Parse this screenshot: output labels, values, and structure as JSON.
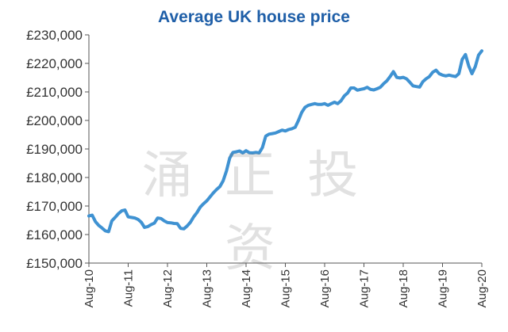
{
  "chart_data": {
    "type": "line",
    "title": "Average UK house price",
    "xlabel": "",
    "ylabel": "",
    "ylim": [
      150000,
      230000
    ],
    "ytick_labels": [
      "£150,000",
      "£160,000",
      "£170,000",
      "£180,000",
      "£190,000",
      "£200,000",
      "£210,000",
      "£220,000",
      "£230,000"
    ],
    "ytick_values": [
      150000,
      160000,
      170000,
      180000,
      190000,
      200000,
      210000,
      220000,
      230000
    ],
    "xtick_labels": [
      "Aug-10",
      "Aug-11",
      "Aug-12",
      "Aug-13",
      "Aug-14",
      "Aug-15",
      "Aug-16",
      "Aug-17",
      "Aug-18",
      "Aug-19",
      "Aug-20"
    ],
    "xtick_values": [
      "2010-08",
      "2011-08",
      "2012-08",
      "2013-08",
      "2014-08",
      "2015-08",
      "2016-08",
      "2017-08",
      "2018-08",
      "2019-08",
      "2020-08"
    ],
    "grid": false,
    "line_color": "#3f92d2",
    "series": [
      {
        "points": [
          [
            "2010-08",
            166500
          ],
          [
            "2010-09",
            166800
          ],
          [
            "2010-10",
            164500
          ],
          [
            "2010-11",
            163200
          ],
          [
            "2010-12",
            162300
          ],
          [
            "2011-01",
            161300
          ],
          [
            "2011-02",
            161000
          ],
          [
            "2011-03",
            164800
          ],
          [
            "2011-04",
            166000
          ],
          [
            "2011-05",
            167300
          ],
          [
            "2011-06",
            168300
          ],
          [
            "2011-07",
            168600
          ],
          [
            "2011-08",
            166200
          ],
          [
            "2011-09",
            166000
          ],
          [
            "2011-10",
            165800
          ],
          [
            "2011-11",
            165300
          ],
          [
            "2011-12",
            164300
          ],
          [
            "2012-01",
            162500
          ],
          [
            "2012-02",
            162800
          ],
          [
            "2012-03",
            163500
          ],
          [
            "2012-04",
            164000
          ],
          [
            "2012-05",
            165800
          ],
          [
            "2012-06",
            165600
          ],
          [
            "2012-07",
            164800
          ],
          [
            "2012-08",
            164200
          ],
          [
            "2012-09",
            164100
          ],
          [
            "2012-10",
            163900
          ],
          [
            "2012-11",
            163800
          ],
          [
            "2012-12",
            162200
          ],
          [
            "2013-01",
            162000
          ],
          [
            "2013-02",
            163000
          ],
          [
            "2013-03",
            164300
          ],
          [
            "2013-04",
            166200
          ],
          [
            "2013-05",
            167700
          ],
          [
            "2013-06",
            169600
          ],
          [
            "2013-07",
            170800
          ],
          [
            "2013-08",
            171800
          ],
          [
            "2013-09",
            173200
          ],
          [
            "2013-10",
            174600
          ],
          [
            "2013-11",
            175800
          ],
          [
            "2013-12",
            176800
          ],
          [
            "2014-01",
            178800
          ],
          [
            "2014-02",
            182300
          ],
          [
            "2014-03",
            186800
          ],
          [
            "2014-04",
            188800
          ],
          [
            "2014-05",
            189000
          ],
          [
            "2014-06",
            189300
          ],
          [
            "2014-07",
            188600
          ],
          [
            "2014-08",
            189400
          ],
          [
            "2014-09",
            188700
          ],
          [
            "2014-10",
            188600
          ],
          [
            "2014-11",
            188800
          ],
          [
            "2014-12",
            188600
          ],
          [
            "2015-01",
            190500
          ],
          [
            "2015-02",
            194500
          ],
          [
            "2015-03",
            195200
          ],
          [
            "2015-04",
            195400
          ],
          [
            "2015-05",
            195600
          ],
          [
            "2015-06",
            196100
          ],
          [
            "2015-07",
            196600
          ],
          [
            "2015-08",
            196300
          ],
          [
            "2015-09",
            196800
          ],
          [
            "2015-10",
            197100
          ],
          [
            "2015-11",
            197600
          ],
          [
            "2015-12",
            200000
          ],
          [
            "2016-01",
            202800
          ],
          [
            "2016-02",
            204600
          ],
          [
            "2016-03",
            205300
          ],
          [
            "2016-04",
            205600
          ],
          [
            "2016-05",
            205900
          ],
          [
            "2016-06",
            205600
          ],
          [
            "2016-07",
            205600
          ],
          [
            "2016-08",
            205900
          ],
          [
            "2016-09",
            205300
          ],
          [
            "2016-10",
            205900
          ],
          [
            "2016-11",
            206400
          ],
          [
            "2016-12",
            205900
          ],
          [
            "2017-01",
            206900
          ],
          [
            "2017-02",
            208600
          ],
          [
            "2017-03",
            209600
          ],
          [
            "2017-04",
            211400
          ],
          [
            "2017-05",
            211400
          ],
          [
            "2017-06",
            210600
          ],
          [
            "2017-07",
            210900
          ],
          [
            "2017-08",
            211100
          ],
          [
            "2017-09",
            211600
          ],
          [
            "2017-10",
            210900
          ],
          [
            "2017-11",
            210700
          ],
          [
            "2017-12",
            211100
          ],
          [
            "2018-01",
            211600
          ],
          [
            "2018-02",
            212900
          ],
          [
            "2018-03",
            213900
          ],
          [
            "2018-04",
            215400
          ],
          [
            "2018-05",
            217100
          ],
          [
            "2018-06",
            215100
          ],
          [
            "2018-07",
            214900
          ],
          [
            "2018-08",
            215100
          ],
          [
            "2018-09",
            214600
          ],
          [
            "2018-10",
            213400
          ],
          [
            "2018-11",
            212100
          ],
          [
            "2018-12",
            211900
          ],
          [
            "2019-01",
            211700
          ],
          [
            "2019-02",
            213600
          ],
          [
            "2019-03",
            214600
          ],
          [
            "2019-04",
            215400
          ],
          [
            "2019-05",
            216900
          ],
          [
            "2019-06",
            217600
          ],
          [
            "2019-07",
            216400
          ],
          [
            "2019-08",
            215900
          ],
          [
            "2019-09",
            215600
          ],
          [
            "2019-10",
            215900
          ],
          [
            "2019-11",
            215600
          ],
          [
            "2019-12",
            215400
          ],
          [
            "2020-01",
            216400
          ],
          [
            "2020-02",
            221400
          ],
          [
            "2020-03",
            223100
          ],
          [
            "2020-04",
            219100
          ],
          [
            "2020-05",
            216400
          ],
          [
            "2020-06",
            218900
          ],
          [
            "2020-07",
            222900
          ],
          [
            "2020-08",
            224400
          ]
        ]
      }
    ]
  },
  "watermark": "涌 正 投 资"
}
